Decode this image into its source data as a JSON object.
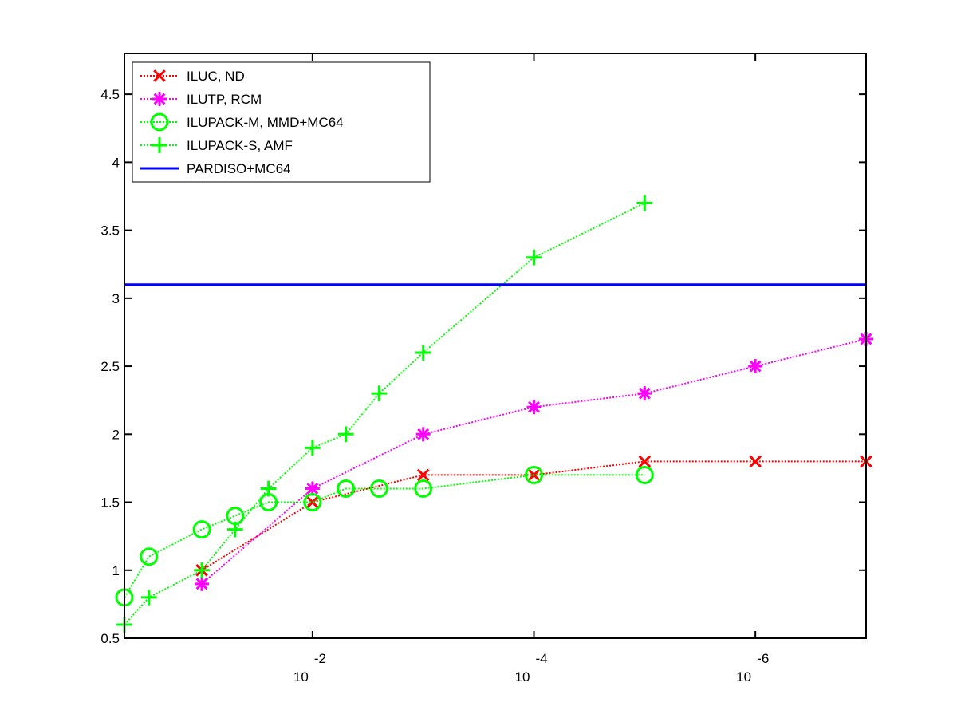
{
  "chart_data": {
    "type": "line",
    "title": "",
    "xlabel": "",
    "ylabel": "",
    "x_scale": "log-reversed",
    "xlim": [
      0.5,
      1e-07
    ],
    "ylim": [
      0.5,
      4.8
    ],
    "grid": false,
    "legend_position": "top-left",
    "x_ticks": [
      {
        "value": 0.01,
        "base": "10",
        "exponent": "-2"
      },
      {
        "value": 0.0001,
        "base": "10",
        "exponent": "-4"
      },
      {
        "value": 1e-06,
        "base": "10",
        "exponent": "-6"
      }
    ],
    "y_ticks": [
      {
        "value": 0.5,
        "label": "0.5"
      },
      {
        "value": 1,
        "label": "1"
      },
      {
        "value": 1.5,
        "label": "1.5"
      },
      {
        "value": 2,
        "label": "2"
      },
      {
        "value": 2.5,
        "label": "2.5"
      },
      {
        "value": 3,
        "label": "3"
      },
      {
        "value": 3.5,
        "label": "3.5"
      },
      {
        "value": 4,
        "label": "4"
      },
      {
        "value": 4.5,
        "label": "4.5"
      }
    ],
    "series": [
      {
        "name": "ILUC,  ND",
        "color": "#ff0000",
        "marker": "x",
        "line": "dotted",
        "x": [
          0.1,
          0.01,
          0.001,
          0.0001,
          1e-05,
          1e-06,
          1e-07
        ],
        "y": [
          1.0,
          1.5,
          1.7,
          1.7,
          1.8,
          1.8,
          1.8
        ]
      },
      {
        "name": "ILUTP, RCM",
        "color": "#ff00ff",
        "marker": "asterisk",
        "line": "dotted",
        "x": [
          0.1,
          0.01,
          0.001,
          0.0001,
          1e-05,
          1e-06,
          1e-07
        ],
        "y": [
          0.9,
          1.6,
          2.0,
          2.2,
          2.3,
          2.5,
          2.7
        ]
      },
      {
        "name": "ILUPACK-M, MMD+MC64",
        "color": "#00ff00",
        "marker": "circle",
        "line": "dotted",
        "x": [
          0.5,
          0.3,
          0.1,
          0.05,
          0.025,
          0.01,
          0.005,
          0.0025,
          0.001,
          0.0001,
          1e-05
        ],
        "y": [
          0.8,
          1.1,
          1.3,
          1.4,
          1.5,
          1.5,
          1.6,
          1.6,
          1.6,
          1.7,
          1.7
        ]
      },
      {
        "name": "ILUPACK-S, AMF",
        "color": "#00ff00",
        "marker": "plus",
        "line": "dotted",
        "x": [
          0.5,
          0.3,
          0.1,
          0.05,
          0.025,
          0.01,
          0.005,
          0.0025,
          0.001,
          0.0001,
          1e-05
        ],
        "y": [
          0.6,
          0.8,
          1.0,
          1.3,
          1.6,
          1.9,
          2.0,
          2.3,
          2.6,
          3.3,
          3.7
        ]
      },
      {
        "name": "PARDISO+MC64",
        "color": "#0000ff",
        "marker": "none",
        "line": "solid",
        "x": [
          0.5,
          1e-07
        ],
        "y": [
          3.1,
          3.1
        ]
      }
    ]
  }
}
